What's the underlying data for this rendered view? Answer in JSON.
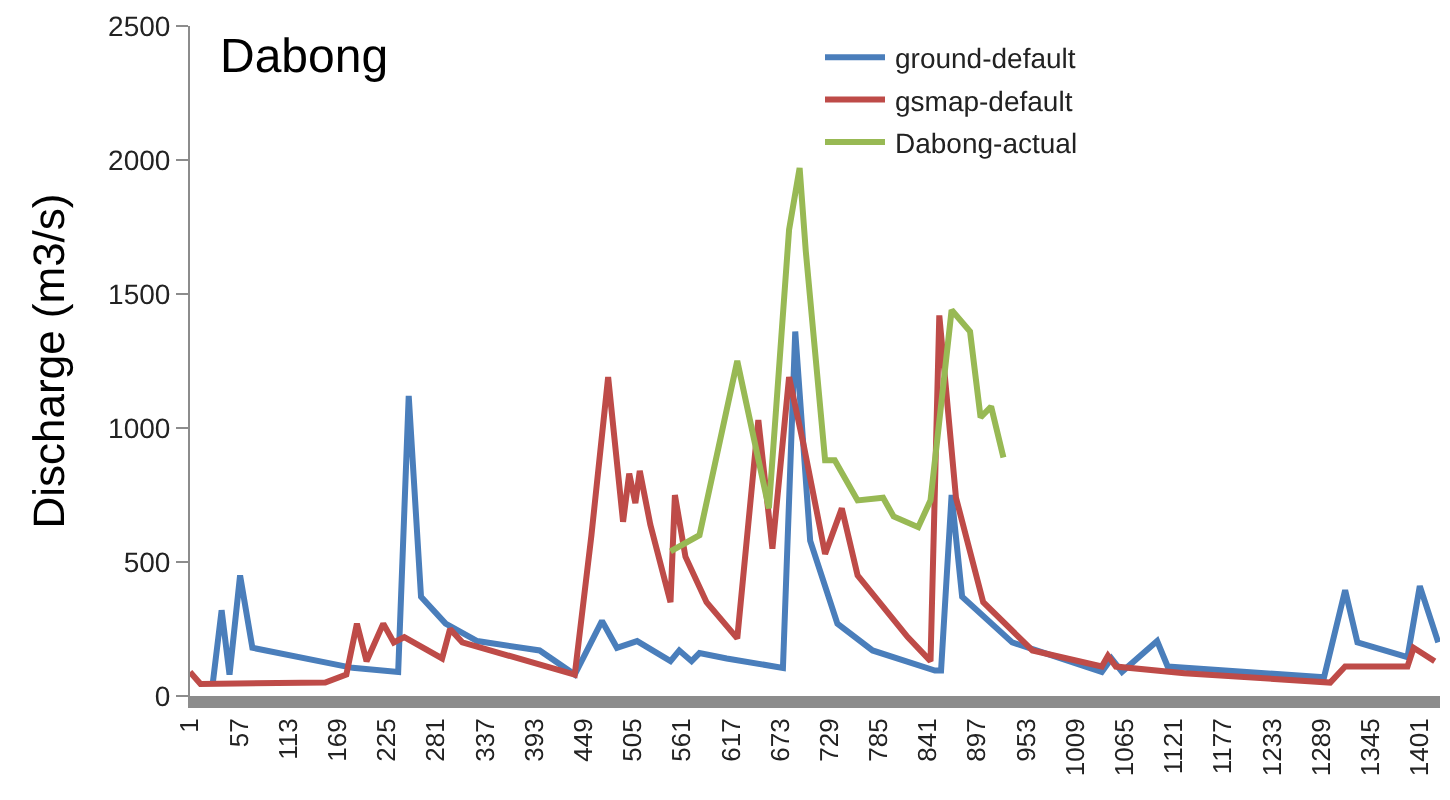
{
  "chart_data": {
    "type": "line",
    "title": "Dabong",
    "ylabel": "Discharge (m3/s)",
    "xlim": [
      1,
      1424
    ],
    "xticks": [
      1,
      57,
      113,
      169,
      225,
      281,
      337,
      393,
      449,
      505,
      561,
      617,
      673,
      729,
      785,
      841,
      897,
      953,
      1009,
      1065,
      1121,
      1177,
      1233,
      1289,
      1345,
      1401
    ],
    "ylim": [
      0,
      2500
    ],
    "yticks": [
      0,
      500,
      1000,
      1500,
      2000,
      2500
    ],
    "legend": "top right",
    "marker": "none",
    "line_style": "solid",
    "series": [
      {
        "name": "ground-default",
        "color": "#4a7ebb",
        "x": [
          27,
          37,
          46,
          58,
          72,
          186,
          238,
          250,
          264,
          292,
          328,
          399,
          439,
          470,
          487,
          510,
          548,
          558,
          572,
          581,
          612,
          676,
          690,
          707,
          738,
          778,
          849,
          856,
          868,
          880,
          937,
          1039,
          1050,
          1062,
          1102,
          1114,
          1292,
          1316,
          1330,
          1387,
          1401,
          1422
        ],
        "values": [
          50,
          320,
          80,
          450,
          180,
          105,
          90,
          1120,
          370,
          270,
          205,
          170,
          80,
          280,
          180,
          205,
          130,
          170,
          130,
          160,
          140,
          105,
          1360,
          580,
          270,
          170,
          95,
          95,
          750,
          370,
          200,
          90,
          140,
          90,
          205,
          110,
          70,
          395,
          200,
          145,
          410,
          200
        ]
      },
      {
        "name": "gsmap-default",
        "color": "#be4b48",
        "x": [
          1,
          13,
          155,
          179,
          191,
          202,
          221,
          233,
          245,
          288,
          297,
          311,
          439,
          458,
          477,
          494,
          501,
          508,
          513,
          525,
          548,
          553,
          565,
          589,
          624,
          648,
          664,
          683,
          700,
          724,
          743,
          761,
          818,
          844,
          854,
          873,
          904,
          960,
          1039,
          1046,
          1055,
          1133,
          1299,
          1316,
          1387,
          1394,
          1418
        ],
        "values": [
          90,
          45,
          50,
          80,
          270,
          130,
          270,
          200,
          220,
          140,
          250,
          200,
          80,
          600,
          1190,
          650,
          830,
          720,
          840,
          640,
          350,
          750,
          520,
          350,
          215,
          1030,
          550,
          1190,
          930,
          530,
          700,
          450,
          220,
          130,
          1420,
          740,
          350,
          170,
          110,
          150,
          110,
          85,
          50,
          110,
          110,
          180,
          130
        ]
      },
      {
        "name": "Dabong-actual",
        "color": "#98b954",
        "x": [
          548,
          581,
          624,
          660,
          683,
          695,
          702,
          724,
          735,
          761,
          790,
          802,
          830,
          844,
          868,
          889,
          901,
          913,
          927
        ],
        "values": [
          540,
          600,
          1250,
          700,
          1740,
          1970,
          1660,
          880,
          880,
          730,
          740,
          670,
          630,
          730,
          1440,
          1360,
          1040,
          1080,
          890
        ]
      }
    ]
  }
}
